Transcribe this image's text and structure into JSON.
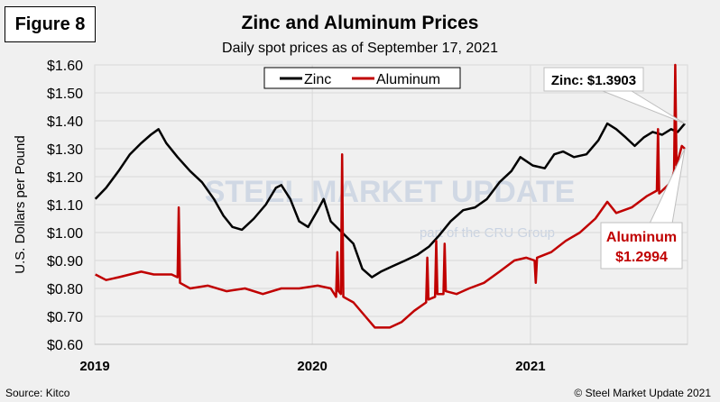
{
  "figure_label": "Figure 8",
  "footer": {
    "source": "Source: Kitco",
    "copyright": "© Steel Market Update 2021"
  },
  "watermark": {
    "text": "STEEL MARKET UPDATE",
    "sub": "part of the CRU Group"
  },
  "chart_data": {
    "type": "line",
    "title": "Zinc and Aluminum Prices",
    "subtitle": "Daily spot prices as of September 17, 2021",
    "ylabel": "U.S. Dollars per Pound",
    "xlabel": "",
    "ylim": [
      0.6,
      1.6
    ],
    "xlim": [
      "2019-01-01",
      "2021-09-17"
    ],
    "yticks": [
      "$0.60",
      "$0.70",
      "$0.80",
      "$0.90",
      "$1.00",
      "$1.10",
      "$1.20",
      "$1.30",
      "$1.40",
      "$1.50",
      "$1.60"
    ],
    "xticks": [
      {
        "label": "2019",
        "date": "2019-01-01"
      },
      {
        "label": "2020",
        "date": "2020-01-01"
      },
      {
        "label": "2021",
        "date": "2021-01-01"
      }
    ],
    "grid": true,
    "legend": "top-center",
    "colors": {
      "Zinc": "#000000",
      "Aluminum": "#c00000"
    },
    "annotations": [
      {
        "series": "Zinc",
        "text": "Zinc: $1.3903"
      },
      {
        "series": "Aluminum",
        "text": "Aluminum\n$1.2994",
        "line1": "Aluminum",
        "line2": "$1.2994"
      }
    ],
    "series": [
      {
        "name": "Zinc",
        "points": [
          [
            "2019-01-02",
            1.12
          ],
          [
            "2019-01-20",
            1.16
          ],
          [
            "2019-02-10",
            1.22
          ],
          [
            "2019-03-01",
            1.28
          ],
          [
            "2019-03-20",
            1.32
          ],
          [
            "2019-04-05",
            1.35
          ],
          [
            "2019-04-18",
            1.37
          ],
          [
            "2019-05-01",
            1.32
          ],
          [
            "2019-05-20",
            1.27
          ],
          [
            "2019-06-10",
            1.22
          ],
          [
            "2019-06-30",
            1.18
          ],
          [
            "2019-07-20",
            1.12
          ],
          [
            "2019-08-05",
            1.06
          ],
          [
            "2019-08-20",
            1.02
          ],
          [
            "2019-09-05",
            1.01
          ],
          [
            "2019-09-25",
            1.05
          ],
          [
            "2019-10-15",
            1.1
          ],
          [
            "2019-11-01",
            1.16
          ],
          [
            "2019-11-10",
            1.17
          ],
          [
            "2019-11-25",
            1.12
          ],
          [
            "2019-12-10",
            1.04
          ],
          [
            "2019-12-25",
            1.02
          ],
          [
            "2020-01-10",
            1.08
          ],
          [
            "2020-01-20",
            1.12
          ],
          [
            "2020-02-01",
            1.04
          ],
          [
            "2020-02-20",
            1.0
          ],
          [
            "2020-03-10",
            0.96
          ],
          [
            "2020-03-25",
            0.87
          ],
          [
            "2020-04-10",
            0.84
          ],
          [
            "2020-04-25",
            0.86
          ],
          [
            "2020-05-15",
            0.88
          ],
          [
            "2020-06-05",
            0.9
          ],
          [
            "2020-06-25",
            0.92
          ],
          [
            "2020-07-15",
            0.95
          ],
          [
            "2020-08-01",
            0.99
          ],
          [
            "2020-08-20",
            1.04
          ],
          [
            "2020-09-10",
            1.08
          ],
          [
            "2020-09-30",
            1.09
          ],
          [
            "2020-10-20",
            1.12
          ],
          [
            "2020-11-10",
            1.18
          ],
          [
            "2020-11-30",
            1.22
          ],
          [
            "2020-12-15",
            1.27
          ],
          [
            "2021-01-05",
            1.24
          ],
          [
            "2021-01-25",
            1.23
          ],
          [
            "2021-02-10",
            1.28
          ],
          [
            "2021-02-25",
            1.29
          ],
          [
            "2021-03-15",
            1.27
          ],
          [
            "2021-04-05",
            1.28
          ],
          [
            "2021-04-25",
            1.33
          ],
          [
            "2021-05-10",
            1.39
          ],
          [
            "2021-05-25",
            1.37
          ],
          [
            "2021-06-10",
            1.34
          ],
          [
            "2021-06-25",
            1.31
          ],
          [
            "2021-07-10",
            1.34
          ],
          [
            "2021-07-25",
            1.36
          ],
          [
            "2021-08-10",
            1.35
          ],
          [
            "2021-08-25",
            1.37
          ],
          [
            "2021-09-05",
            1.36
          ],
          [
            "2021-09-17",
            1.39
          ]
        ]
      },
      {
        "name": "Aluminum",
        "points": [
          [
            "2019-01-02",
            0.85
          ],
          [
            "2019-01-20",
            0.83
          ],
          [
            "2019-02-10",
            0.84
          ],
          [
            "2019-03-01",
            0.85
          ],
          [
            "2019-03-20",
            0.86
          ],
          [
            "2019-04-10",
            0.85
          ],
          [
            "2019-05-10",
            0.85
          ],
          [
            "2019-05-20",
            0.84
          ],
          [
            "2019-05-22",
            1.09
          ],
          [
            "2019-05-24",
            0.82
          ],
          [
            "2019-06-10",
            0.8
          ],
          [
            "2019-07-10",
            0.81
          ],
          [
            "2019-08-10",
            0.79
          ],
          [
            "2019-09-10",
            0.8
          ],
          [
            "2019-10-10",
            0.78
          ],
          [
            "2019-11-10",
            0.8
          ],
          [
            "2019-12-10",
            0.8
          ],
          [
            "2020-01-10",
            0.81
          ],
          [
            "2020-02-01",
            0.8
          ],
          [
            "2020-02-10",
            0.77
          ],
          [
            "2020-02-12",
            0.93
          ],
          [
            "2020-02-14",
            0.79
          ],
          [
            "2020-02-18",
            0.78
          ],
          [
            "2020-02-20",
            1.28
          ],
          [
            "2020-02-22",
            0.77
          ],
          [
            "2020-03-10",
            0.75
          ],
          [
            "2020-03-30",
            0.7
          ],
          [
            "2020-04-15",
            0.66
          ],
          [
            "2020-05-10",
            0.66
          ],
          [
            "2020-05-30",
            0.68
          ],
          [
            "2020-06-20",
            0.72
          ],
          [
            "2020-07-10",
            0.75
          ],
          [
            "2020-07-12",
            0.91
          ],
          [
            "2020-07-14",
            0.76
          ],
          [
            "2020-07-25",
            0.77
          ],
          [
            "2020-07-27",
            0.97
          ],
          [
            "2020-07-29",
            0.78
          ],
          [
            "2020-08-08",
            0.78
          ],
          [
            "2020-08-10",
            0.96
          ],
          [
            "2020-08-12",
            0.79
          ],
          [
            "2020-08-30",
            0.78
          ],
          [
            "2020-09-20",
            0.8
          ],
          [
            "2020-10-15",
            0.82
          ],
          [
            "2020-11-10",
            0.86
          ],
          [
            "2020-12-05",
            0.9
          ],
          [
            "2020-12-25",
            0.91
          ],
          [
            "2021-01-08",
            0.9
          ],
          [
            "2021-01-10",
            0.82
          ],
          [
            "2021-01-12",
            0.91
          ],
          [
            "2021-02-05",
            0.93
          ],
          [
            "2021-03-01",
            0.97
          ],
          [
            "2021-03-25",
            1.0
          ],
          [
            "2021-04-20",
            1.05
          ],
          [
            "2021-05-10",
            1.11
          ],
          [
            "2021-05-25",
            1.07
          ],
          [
            "2021-06-20",
            1.09
          ],
          [
            "2021-07-15",
            1.13
          ],
          [
            "2021-08-01",
            1.15
          ],
          [
            "2021-08-03",
            1.37
          ],
          [
            "2021-08-05",
            1.14
          ],
          [
            "2021-08-25",
            1.18
          ],
          [
            "2021-08-30",
            1.22
          ],
          [
            "2021-09-01",
            1.6
          ],
          [
            "2021-09-03",
            1.24
          ],
          [
            "2021-09-12",
            1.31
          ],
          [
            "2021-09-17",
            1.3
          ]
        ]
      }
    ]
  }
}
